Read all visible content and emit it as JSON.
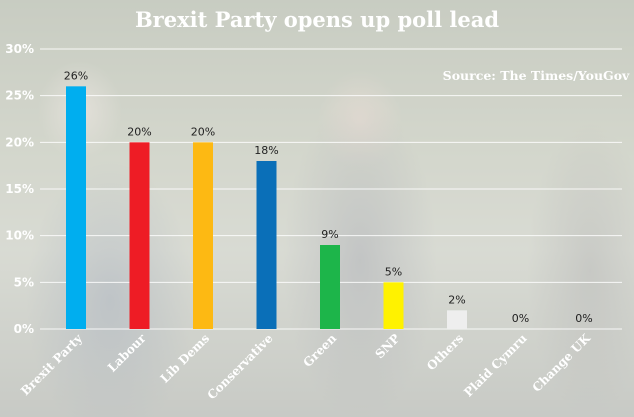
{
  "chart_data": {
    "type": "bar",
    "title": "Brexit Party opens up poll lead",
    "source": "Source: The Times/YouGov",
    "categories": [
      "Brexit Party",
      "Labour",
      "Lib Dems",
      "Conservative",
      "Green",
      "SNP",
      "Others",
      "Plaid Cymru",
      "Change UK"
    ],
    "values": [
      26,
      20,
      20,
      18,
      9,
      5,
      2,
      0,
      0
    ],
    "value_labels": [
      "26%",
      "20%",
      "20%",
      "18%",
      "9%",
      "5%",
      "2%",
      "0%",
      "0%"
    ],
    "colors": [
      "#00AEEF",
      "#EE1C25",
      "#FDB913",
      "#0A6FB8",
      "#1DB54A",
      "#FFF200",
      "#EEEEEE",
      "#3F8428",
      "#222222"
    ],
    "yticks": [
      "0%",
      "5%",
      "10%",
      "15%",
      "20%",
      "25%",
      "30%"
    ],
    "ylim": [
      0,
      30
    ],
    "grid": true,
    "xlabel": "",
    "ylabel": ""
  }
}
